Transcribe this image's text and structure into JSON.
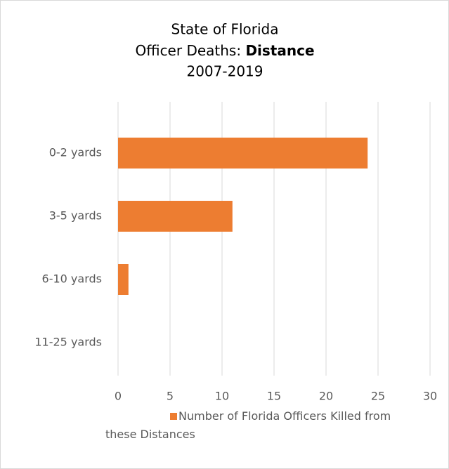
{
  "chart_data": {
    "type": "hbar",
    "title": [
      "State of Florida",
      "Officer Deaths: ",
      "Distance",
      "2007-2019"
    ],
    "categories": [
      "0-2 yards",
      "3-5 yards",
      "6-10 yards",
      "11-25 yards"
    ],
    "series": [
      {
        "name": "Number of Florida Officers Killed from these Distances",
        "color": "#ed7d31",
        "values": [
          24,
          11,
          1,
          0
        ]
      }
    ],
    "xlim": [
      0,
      30
    ],
    "xticks": [
      0,
      5,
      10,
      15,
      20,
      25,
      30
    ],
    "grid": true,
    "legend": "bottom"
  }
}
